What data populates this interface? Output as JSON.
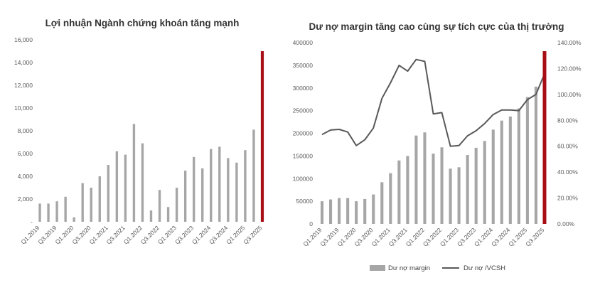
{
  "chart_data": [
    {
      "type": "bar",
      "title": "Lợi nhuận Ngành chứng khoán tăng mạnh",
      "categories": [
        "Q1.2019",
        "Q2.2019",
        "Q3.2019",
        "Q4.2019",
        "Q1.2020",
        "Q2.2020",
        "Q3.2020",
        "Q4.2020",
        "Q1.2021",
        "Q2.2021",
        "Q3.2021",
        "Q4.2021",
        "Q1.2022",
        "Q2.2022",
        "Q3.2022",
        "Q4.2022",
        "Q1.2023",
        "Q2.2023",
        "Q3.2023",
        "Q4.2023",
        "Q1.2024",
        "Q2.2024",
        "Q3.2024",
        "Q4.2024",
        "Q1.2025",
        "Q2.2025",
        "Q3.2025"
      ],
      "x_tick_labels": [
        "Q1.2019",
        "Q3.2019",
        "Q1.2020",
        "Q3.2020",
        "Q1.2021",
        "Q3.2021",
        "Q1.2022",
        "Q3.2022",
        "Q1.2023",
        "Q3.2023",
        "Q1.2024",
        "Q3.2024",
        "Q1.2025",
        "Q3.2025"
      ],
      "values": [
        1600,
        1600,
        1800,
        2200,
        400,
        3400,
        3000,
        4000,
        5000,
        6200,
        5900,
        8600,
        6900,
        1000,
        2800,
        1300,
        3000,
        4500,
        5700,
        4700,
        6400,
        6600,
        5600,
        5200,
        6300,
        8100,
        15000
      ],
      "highlight_index": 26,
      "ylim": [
        0,
        16000
      ],
      "y_ticks": [
        0,
        2000,
        4000,
        6000,
        8000,
        10000,
        12000,
        14000,
        16000
      ],
      "y_tick_labels": [
        "-",
        "2,000",
        "4,000",
        "6,000",
        "8,000",
        "10,000",
        "12,000",
        "14,000",
        "16,000"
      ],
      "xlabel": "",
      "ylabel": "",
      "grid": false,
      "colors": {
        "bar": "#a6a6a6",
        "highlight": "#a50f15"
      }
    },
    {
      "type": "bar+line",
      "title": "Dư nợ margin tăng cao cùng sự tích cực của thị trường",
      "categories": [
        "Q1.2019",
        "Q2.2019",
        "Q3.2019",
        "Q4.2019",
        "Q1.2020",
        "Q2.2020",
        "Q3.2020",
        "Q4.2020",
        "Q1.2021",
        "Q2.2021",
        "Q3.2021",
        "Q4.2021",
        "Q1.2022",
        "Q2.2022",
        "Q3.2022",
        "Q4.2022",
        "Q1.2023",
        "Q2.2023",
        "Q3.2023",
        "Q4.2023",
        "Q1.2024",
        "Q2.2024",
        "Q3.2024",
        "Q4.2024",
        "Q1.2025",
        "Q2.2025",
        "Q3.2025"
      ],
      "x_tick_labels": [
        "Q1.2019",
        "Q3.2019",
        "Q1.2020",
        "Q3.2020",
        "Q1.2021",
        "Q3.2021",
        "Q1.2022",
        "Q3.2022",
        "Q1.2023",
        "Q3.2023",
        "Q1.2024",
        "Q3.2024",
        "Q1.2025",
        "Q3.2025"
      ],
      "series": [
        {
          "name": "Dư nợ margin",
          "type": "bar",
          "axis": "left",
          "values": [
            50000,
            54000,
            57000,
            57000,
            50000,
            55000,
            65000,
            92000,
            112000,
            140000,
            150000,
            195000,
            202000,
            155000,
            169000,
            122000,
            125000,
            152000,
            168000,
            183000,
            208000,
            228000,
            237000,
            255000,
            280000,
            303000,
            320000
          ]
        },
        {
          "name": "Dư nợ /VCSH",
          "type": "line",
          "axis": "right",
          "values": [
            0.69,
            0.725,
            0.73,
            0.71,
            0.605,
            0.65,
            0.74,
            0.97,
            1.09,
            1.225,
            1.18,
            1.27,
            1.255,
            0.85,
            0.86,
            0.6,
            0.605,
            0.68,
            0.72,
            0.775,
            0.845,
            0.88,
            0.88,
            0.875,
            0.96,
            1.0,
            1.16
          ]
        }
      ],
      "highlight_index": 26,
      "ylim": [
        0,
        400000
      ],
      "y_ticks": [
        0,
        50000,
        100000,
        150000,
        200000,
        250000,
        300000,
        350000,
        400000
      ],
      "y_tick_labels": [
        "0",
        "50000",
        "100000",
        "150000",
        "200000",
        "250000",
        "300000",
        "350000",
        "400000"
      ],
      "y2lim": [
        0,
        1.4
      ],
      "y2_ticks": [
        0,
        0.2,
        0.4,
        0.6,
        0.8,
        1.0,
        1.2,
        1.4
      ],
      "y2_tick_labels": [
        "0.00%",
        "20.00%",
        "40.00%",
        "60.00%",
        "80.00%",
        "100.00%",
        "120.00%",
        "140.00%"
      ],
      "xlabel": "",
      "ylabel": "",
      "grid": false,
      "legend": "bottom",
      "colors": {
        "bar": "#a6a6a6",
        "line": "#595959",
        "highlight": "#a50f15"
      }
    }
  ]
}
